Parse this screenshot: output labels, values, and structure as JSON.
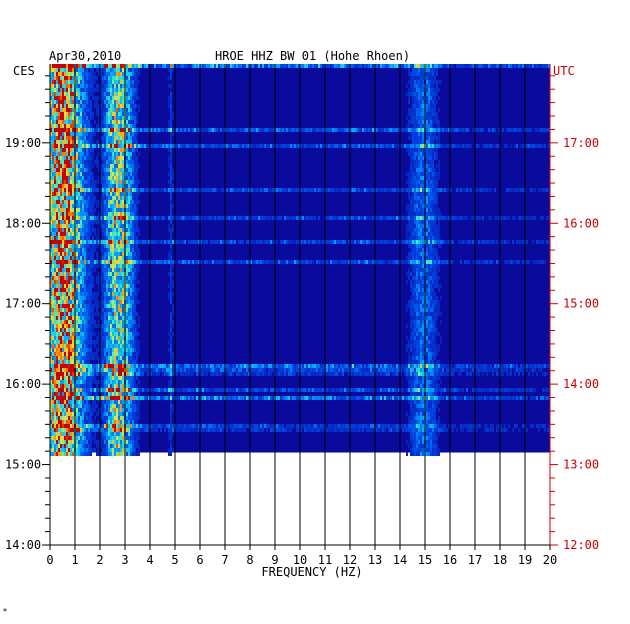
{
  "chart_data": {
    "type": "heatmap",
    "header": {
      "date": "Apr30,2010",
      "station": "HROE HHZ BW 01 (Hohe Rhoen)"
    },
    "left_axis": {
      "zone_label": "CES",
      "ticks": [
        "19:00",
        "18:00",
        "17:00",
        "16:00",
        "15:00",
        "14:00"
      ],
      "range_hours": [
        14.0,
        19.98
      ]
    },
    "right_axis": {
      "zone_label": "UTC",
      "ticks": [
        "17:00",
        "16:00",
        "15:00",
        "14:00",
        "13:00",
        "12:00"
      ],
      "range_hours": [
        12.0,
        17.98
      ]
    },
    "x_axis": {
      "label": "FREQUENCY (HZ)",
      "ticks": [
        "0",
        "1",
        "2",
        "3",
        "4",
        "5",
        "6",
        "7",
        "8",
        "9",
        "10",
        "11",
        "12",
        "13",
        "14",
        "15",
        "16",
        "17",
        "18",
        "19",
        "20"
      ],
      "range": [
        0,
        20
      ]
    },
    "data_extent_local_hours": [
      15.15,
      19.98
    ],
    "colors": {
      "background": "#0a0a9c",
      "axis_left": "#000000",
      "axis_right": "#cc0000",
      "grid": "#000000"
    },
    "bands_hz": [
      {
        "center": 0.5,
        "width": 0.9,
        "strength": 0.85
      },
      {
        "center": 2.9,
        "width": 0.5,
        "strength": 0.55
      },
      {
        "center": 2.4,
        "width": 0.35,
        "strength": 0.35
      },
      {
        "center": 14.9,
        "width": 0.6,
        "strength": 0.35
      },
      {
        "center": 4.8,
        "width": 0.1,
        "strength": 0.2
      }
    ]
  },
  "footer_mark": "*"
}
